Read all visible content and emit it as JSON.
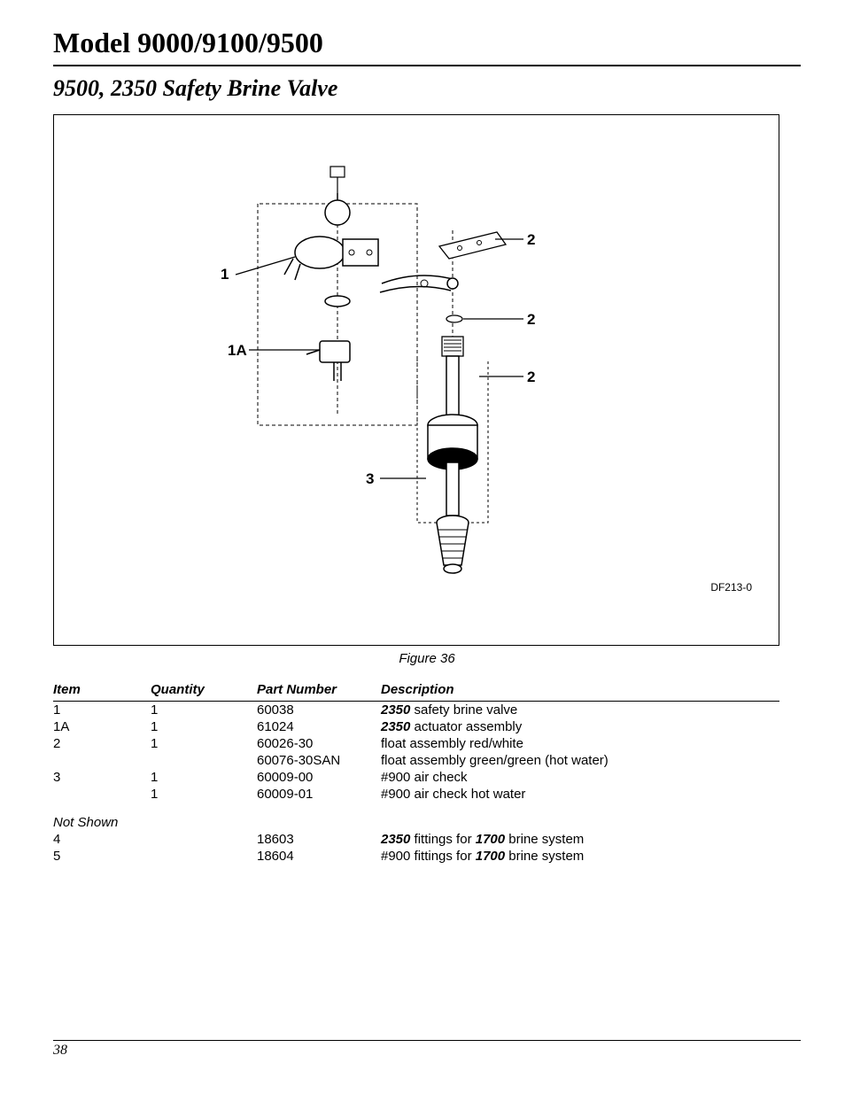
{
  "header": {
    "title": "Model 9000/9100/9500"
  },
  "section": {
    "title": "9500, 2350 Safety Brine Valve"
  },
  "figure": {
    "caption": "Figure 36",
    "code": "DF213-0",
    "callouts": [
      "1",
      "1A",
      "2",
      "2",
      "2",
      "3"
    ]
  },
  "table": {
    "columns": [
      "Item",
      "Quantity",
      "Part Number",
      "Description"
    ],
    "rows": [
      {
        "item": "1",
        "qty": "1",
        "pn": "60038",
        "desc_pre": "2350",
        "desc": " safety brine valve"
      },
      {
        "item": "1A",
        "qty": "1",
        "pn": "61024",
        "desc_pre": "2350",
        "desc": " actuator assembly"
      },
      {
        "item": "2",
        "qty": "1",
        "pn": "60026-30",
        "desc_pre": "",
        "desc": "float assembly red/white"
      },
      {
        "item": "",
        "qty": "",
        "pn": "60076-30SAN",
        "desc_pre": "",
        "desc": "float assembly green/green (hot water)"
      },
      {
        "item": "3",
        "qty": "1",
        "pn": "60009-00",
        "desc_pre": "",
        "desc": "#900 air check"
      },
      {
        "item": "",
        "qty": "1",
        "pn": "60009-01",
        "desc_pre": "",
        "desc": "#900 air check hot water"
      }
    ],
    "not_shown_label": "Not Shown",
    "not_shown_rows": [
      {
        "item": "4",
        "qty": "",
        "pn": "18603",
        "desc_pre": "2350",
        "desc_mid": " fittings for ",
        "desc_b2": "1700",
        "desc_post": " brine system"
      },
      {
        "item": "5",
        "qty": "",
        "pn": "18604",
        "desc_plain_pre": "#900 fittings for ",
        "desc_b2": "1700",
        "desc_post": " brine system"
      }
    ]
  },
  "footer": {
    "page_number": "38"
  }
}
